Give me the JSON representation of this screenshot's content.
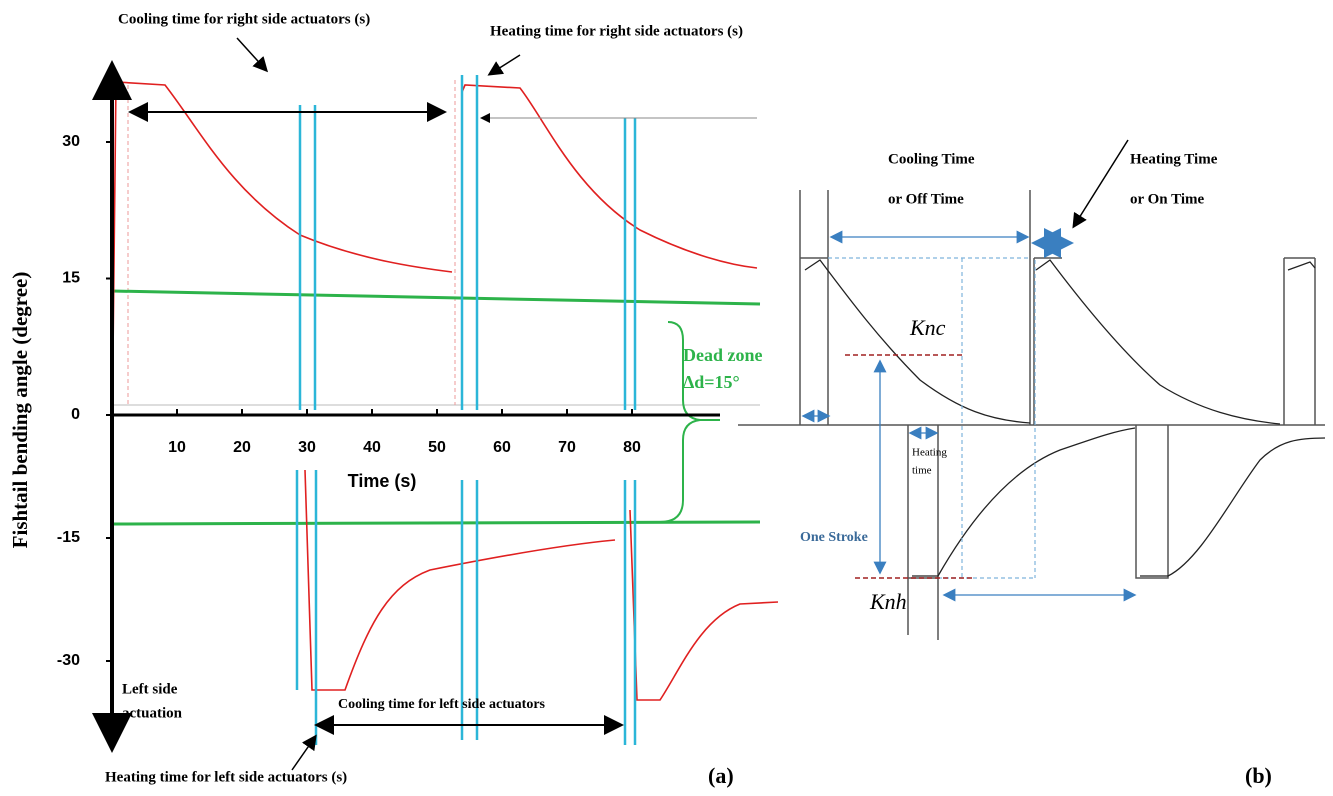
{
  "panel_a": {
    "y_axis_label": "Fishtail bending angle (degree)",
    "yticks": [
      30,
      15,
      0,
      -15,
      -30
    ],
    "xticks": [
      10,
      20,
      30,
      40,
      50,
      60,
      70,
      80
    ],
    "x_axis_label": "Time (s)",
    "top_cooling_label": "Cooling time for right side actuators (s)",
    "top_heating_label": "Heating time for right side actuators (s)",
    "dead_zone_label": "Dead zone",
    "dead_zone_value": "Δd=15°",
    "left_side_label": [
      "Left side",
      "actuation"
    ],
    "bottom_cooling_label": "Cooling time for left side actuators",
    "bottom_heating_label": "Heating time for left side actuators (s)",
    "panel_label": "(a)"
  },
  "panel_b": {
    "cooling_label": [
      "Cooling Time",
      "or Off Time"
    ],
    "heating_label": [
      "Heating Time",
      "or On Time"
    ],
    "knc_label": "Knc",
    "knh_label": "Knh",
    "small_heating_label": [
      "Heating",
      "time"
    ],
    "stroke_label": "One Stroke",
    "panel_label": "(b)"
  }
}
